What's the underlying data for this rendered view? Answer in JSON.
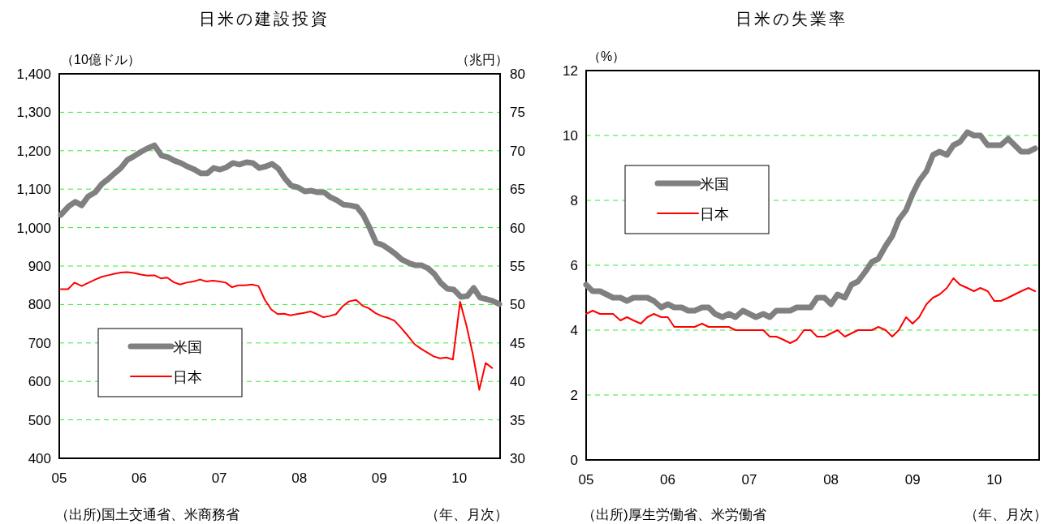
{
  "chart_data": [
    {
      "type": "line",
      "title": "日米の建設投資",
      "ylabel": "（10億ドル）",
      "y2label": "（兆円）",
      "xlabel": "（年、月次）",
      "annotations": [
        "（出所)国土交通省、米商務省"
      ],
      "xlim": [
        2005,
        2010.51
      ],
      "xticks": [
        {
          "value": 2005,
          "label": "05"
        },
        {
          "value": 2006,
          "label": "06"
        },
        {
          "value": 2007,
          "label": "07"
        },
        {
          "value": 2008,
          "label": "08"
        },
        {
          "value": 2009,
          "label": "09"
        },
        {
          "value": 2010,
          "label": "10"
        }
      ],
      "ylim": [
        400,
        1400
      ],
      "yticks": [
        400,
        500,
        600,
        700,
        800,
        900,
        {
          "value": 1000,
          "label": "1,000"
        },
        {
          "value": 1100,
          "label": "1,100"
        },
        {
          "value": 1200,
          "label": "1,200"
        },
        {
          "value": 1300,
          "label": "1,300"
        },
        {
          "value": 1400,
          "label": "1,400"
        }
      ],
      "y2lim": [
        30,
        80
      ],
      "y2ticks": [
        30,
        35,
        40,
        45,
        50,
        55,
        60,
        65,
        70,
        75,
        80
      ],
      "grid": "y",
      "legend": "bottom left",
      "series": [
        {
          "name": "米国",
          "color": "#808080",
          "x": [
            2005.02,
            2005.12,
            2005.2,
            2005.28,
            2005.36,
            2005.45,
            2005.53,
            2005.61,
            2005.69,
            2005.77,
            2005.85,
            2005.93,
            2006.02,
            2006.1,
            2006.19,
            2006.28,
            2006.36,
            2006.44,
            2006.52,
            2006.6,
            2006.69,
            2006.77,
            2006.85,
            2006.93,
            2007.01,
            2007.09,
            2007.17,
            2007.25,
            2007.34,
            2007.42,
            2007.5,
            2007.58,
            2007.66,
            2007.74,
            2007.82,
            2007.9,
            2007.98,
            2008.07,
            2008.15,
            2008.23,
            2008.31,
            2008.39,
            2008.47,
            2008.55,
            2008.63,
            2008.72,
            2008.8,
            2008.88,
            2008.96,
            2009.04,
            2009.12,
            2009.2,
            2009.28,
            2009.37,
            2009.45,
            2009.53,
            2009.61,
            2009.69,
            2009.77,
            2009.85,
            2009.93,
            2010.02,
            2010.1,
            2010.18,
            2010.26,
            2010.34,
            2010.42,
            2010.5
          ],
          "values": [
            1033,
            1056,
            1067,
            1058,
            1081,
            1092,
            1113,
            1126,
            1141,
            1155,
            1176,
            1185,
            1197,
            1206,
            1214,
            1187,
            1183,
            1174,
            1168,
            1159,
            1151,
            1141,
            1141,
            1155,
            1151,
            1157,
            1168,
            1164,
            1170,
            1168,
            1155,
            1159,
            1166,
            1153,
            1128,
            1109,
            1105,
            1094,
            1096,
            1092,
            1092,
            1079,
            1071,
            1060,
            1058,
            1054,
            1033,
            999,
            961,
            955,
            944,
            932,
            917,
            908,
            902,
            902,
            894,
            879,
            856,
            841,
            839,
            820,
            822,
            843,
            818,
            814,
            809,
            801
          ]
        },
        {
          "name": "日本",
          "color": "#ff0000",
          "axis": "y2",
          "x": [
            2005.02,
            2005.11,
            2005.19,
            2005.28,
            2005.37,
            2005.45,
            2005.53,
            2005.61,
            2005.69,
            2005.77,
            2005.85,
            2005.93,
            2006.02,
            2006.1,
            2006.19,
            2006.27,
            2006.35,
            2006.43,
            2006.51,
            2006.59,
            2006.68,
            2006.76,
            2006.84,
            2006.92,
            2007.0,
            2007.08,
            2007.16,
            2007.24,
            2007.32,
            2007.41,
            2007.49,
            2007.57,
            2007.65,
            2007.73,
            2007.81,
            2007.89,
            2007.97,
            2008.06,
            2008.14,
            2008.22,
            2008.3,
            2008.38,
            2008.46,
            2008.54,
            2008.62,
            2008.71,
            2008.79,
            2008.87,
            2008.95,
            2009.03,
            2009.11,
            2009.19,
            2009.27,
            2009.36,
            2009.44,
            2009.52,
            2009.6,
            2009.68,
            2009.76,
            2009.84,
            2009.92,
            2010.01,
            2010.09,
            2010.17,
            2010.25,
            2010.33,
            2010.41
          ],
          "values": [
            52.0,
            52.0,
            52.85,
            52.4,
            52.85,
            53.25,
            53.6,
            53.8,
            54.0,
            54.15,
            54.2,
            54.1,
            53.9,
            53.75,
            53.8,
            53.4,
            53.5,
            52.9,
            52.6,
            52.85,
            53.0,
            53.25,
            53.0,
            53.1,
            53.0,
            52.85,
            52.25,
            52.5,
            52.5,
            52.6,
            52.4,
            50.6,
            49.35,
            48.75,
            48.8,
            48.6,
            48.75,
            48.9,
            49.1,
            48.75,
            48.35,
            48.5,
            48.75,
            49.75,
            50.4,
            50.6,
            49.85,
            49.5,
            48.9,
            48.5,
            48.25,
            47.9,
            47.0,
            45.9,
            44.85,
            44.25,
            43.75,
            43.25,
            43.0,
            43.1,
            42.85,
            50.35,
            47.25,
            43.5,
            38.9,
            42.4,
            41.75
          ]
        }
      ]
    },
    {
      "type": "line",
      "title": "日米の失業率",
      "ylabel": "（%）",
      "xlabel": "（年、月次）",
      "annotations": [
        "（出所)厚生労働省、米労働省"
      ],
      "xlim": [
        2005,
        2010.55
      ],
      "xticks": [
        {
          "value": 2005,
          "label": "05"
        },
        {
          "value": 2006,
          "label": "06"
        },
        {
          "value": 2007,
          "label": "07"
        },
        {
          "value": 2008,
          "label": "08"
        },
        {
          "value": 2009,
          "label": "09"
        },
        {
          "value": 2010,
          "label": "10"
        }
      ],
      "ylim": [
        0,
        12
      ],
      "yticks": [
        0,
        2,
        4,
        6,
        8,
        10,
        12
      ],
      "grid": "y",
      "legend": "top left",
      "series": [
        {
          "name": "米国",
          "color": "#808080",
          "values": [
            5.4,
            5.2,
            5.2,
            5.1,
            5.0,
            5.0,
            4.9,
            5.0,
            5.0,
            5.0,
            4.9,
            4.7,
            4.8,
            4.7,
            4.7,
            4.6,
            4.6,
            4.7,
            4.7,
            4.5,
            4.4,
            4.5,
            4.4,
            4.6,
            4.5,
            4.4,
            4.5,
            4.4,
            4.6,
            4.6,
            4.6,
            4.7,
            4.7,
            4.7,
            5.0,
            5.0,
            4.8,
            5.1,
            5.0,
            5.4,
            5.5,
            5.8,
            6.1,
            6.2,
            6.6,
            6.9,
            7.4,
            7.7,
            8.2,
            8.6,
            8.9,
            9.4,
            9.5,
            9.4,
            9.7,
            9.8,
            10.1,
            10.0,
            10.0,
            9.7,
            9.7,
            9.7,
            9.9,
            9.7,
            9.5,
            9.5,
            9.6
          ]
        },
        {
          "name": "日本",
          "color": "#ff0000",
          "values": [
            4.5,
            4.6,
            4.5,
            4.5,
            4.5,
            4.3,
            4.4,
            4.3,
            4.2,
            4.4,
            4.5,
            4.4,
            4.4,
            4.1,
            4.1,
            4.1,
            4.1,
            4.2,
            4.1,
            4.1,
            4.1,
            4.1,
            4.0,
            4.0,
            4.0,
            4.0,
            4.0,
            3.8,
            3.8,
            3.7,
            3.6,
            3.7,
            4.0,
            4.0,
            3.8,
            3.8,
            3.9,
            4.0,
            3.8,
            3.9,
            4.0,
            4.0,
            4.0,
            4.1,
            4.0,
            3.8,
            4.0,
            4.4,
            4.2,
            4.4,
            4.8,
            5.0,
            5.1,
            5.3,
            5.6,
            5.4,
            5.3,
            5.2,
            5.3,
            5.2,
            4.9,
            4.9,
            5.0,
            5.1,
            5.2,
            5.3,
            5.2
          ]
        }
      ],
      "x": [
        2005.0,
        2005.08,
        2005.17,
        2005.25,
        2005.33,
        2005.42,
        2005.5,
        2005.58,
        2005.67,
        2005.75,
        2005.83,
        2005.92,
        2006.0,
        2006.08,
        2006.17,
        2006.25,
        2006.33,
        2006.42,
        2006.5,
        2006.58,
        2006.67,
        2006.75,
        2006.83,
        2006.92,
        2007.0,
        2007.08,
        2007.17,
        2007.25,
        2007.33,
        2007.42,
        2007.5,
        2007.58,
        2007.67,
        2007.75,
        2007.83,
        2007.92,
        2008.0,
        2008.08,
        2008.17,
        2008.25,
        2008.33,
        2008.42,
        2008.5,
        2008.58,
        2008.67,
        2008.75,
        2008.83,
        2008.92,
        2009.0,
        2009.08,
        2009.17,
        2009.25,
        2009.33,
        2009.42,
        2009.5,
        2009.58,
        2009.67,
        2009.75,
        2009.83,
        2009.92,
        2010.0,
        2010.08,
        2010.17,
        2010.25,
        2010.33,
        2010.42,
        2010.5
      ]
    }
  ]
}
